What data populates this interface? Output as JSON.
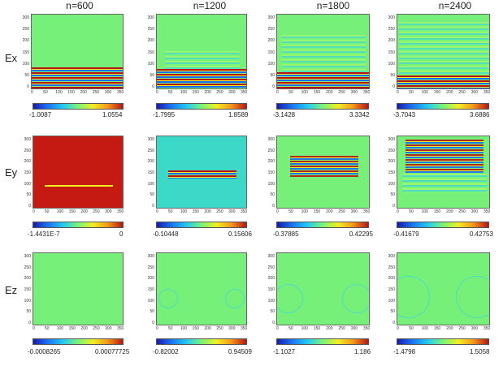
{
  "columns": [
    "n=600",
    "n=1200",
    "n=1800",
    "n=2400"
  ],
  "rows": [
    "Ex",
    "Ey",
    "Ez"
  ],
  "y_ticks": [
    "300",
    "250",
    "200",
    "150",
    "100",
    "50",
    "0"
  ],
  "x_ticks": [
    "0",
    "50",
    "100",
    "150",
    "200",
    "250",
    "300",
    "350"
  ],
  "colorbars": {
    "ex": [
      {
        "min": "-1.0087",
        "max": "1.0554"
      },
      {
        "min": "-1.7995",
        "max": "1.8589"
      },
      {
        "min": "-3.1428",
        "max": "3.3342"
      },
      {
        "min": "-3.7043",
        "max": "3.6886"
      }
    ],
    "ey": [
      {
        "min": "-1.4431E-7",
        "max": "0"
      },
      {
        "min": "-0.10448",
        "max": "0.15606"
      },
      {
        "min": "-0.37885",
        "max": "0.42295"
      },
      {
        "min": "-0.41679",
        "max": "0.42753"
      }
    ],
    "ez": [
      {
        "min": "-0.0008265",
        "max": "0.00077725"
      },
      {
        "min": "-0.82002",
        "max": "0.94509"
      },
      {
        "min": "-1.1027",
        "max": "1.186"
      },
      {
        "min": "-1.4798",
        "max": "1.5058"
      }
    ]
  },
  "colors": {
    "background_green": "#77f07a",
    "red": "#b81414",
    "yellow": "#f2ee22",
    "blue": "#1a6cf0",
    "cyan": "#23c8f5"
  }
}
